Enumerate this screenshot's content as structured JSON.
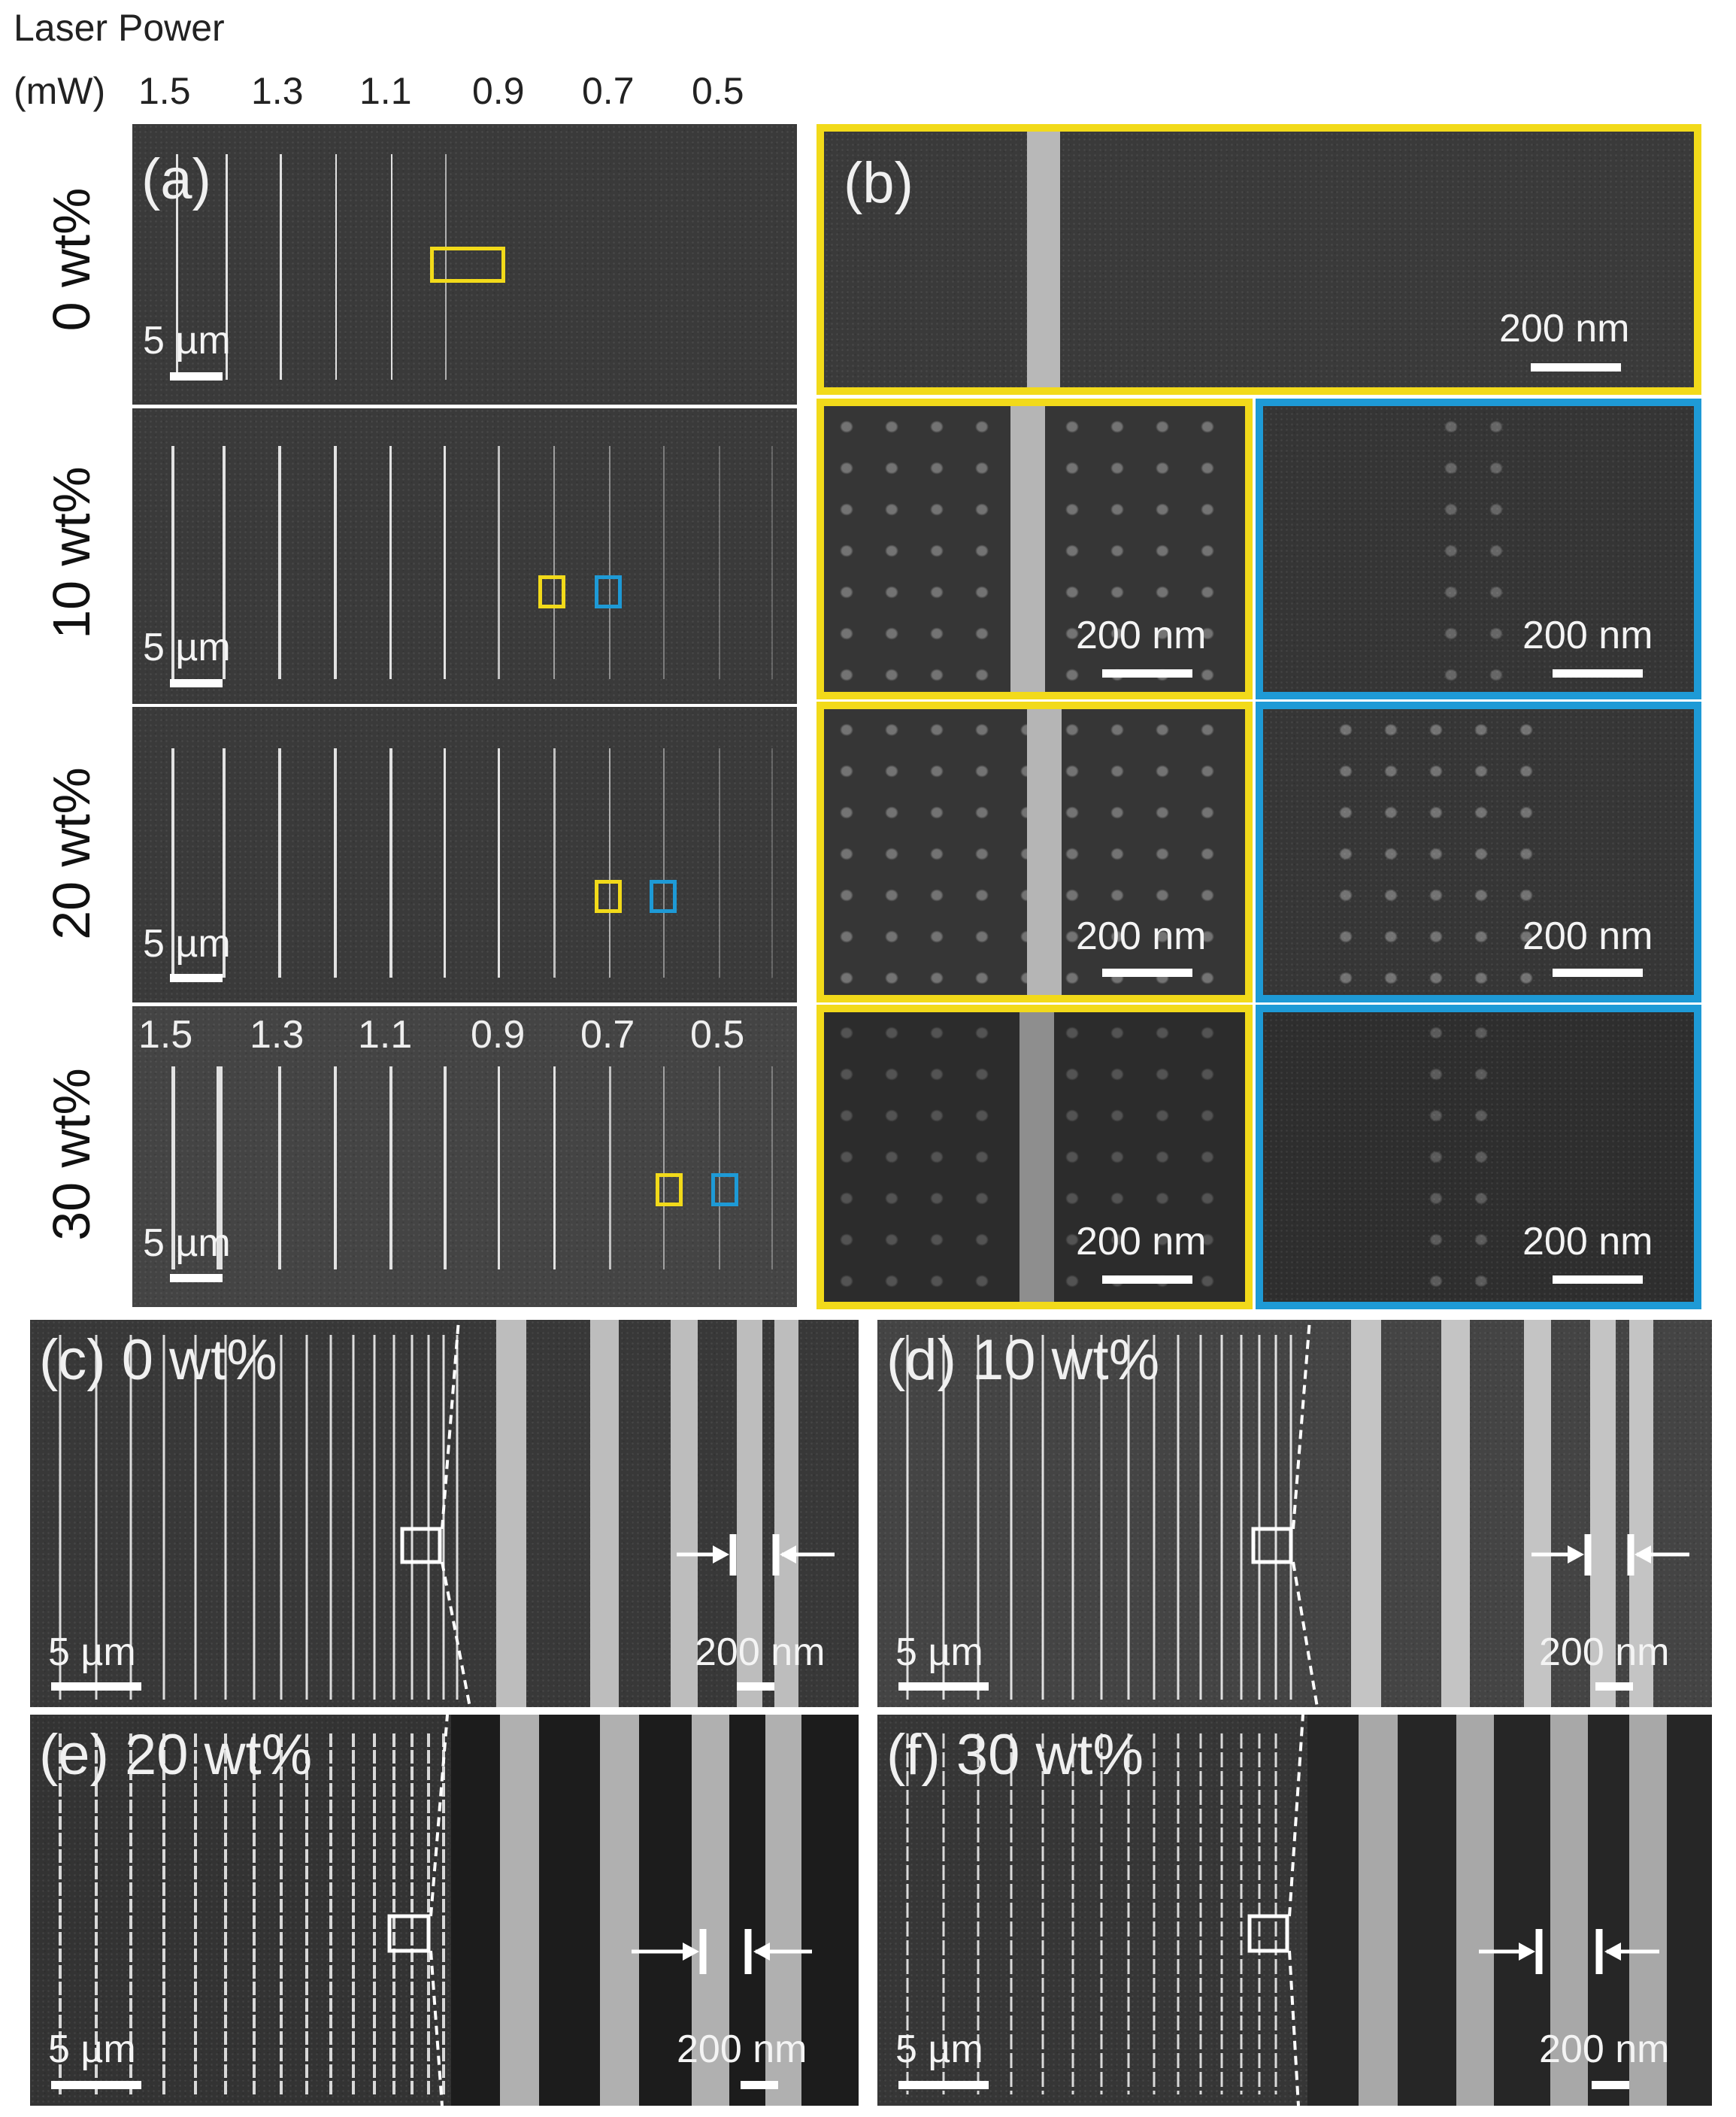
{
  "header": {
    "title": "Laser Power",
    "unit": "(mW)",
    "powers": [
      "1.5",
      "1.3",
      "1.1",
      "0.9",
      "0.7",
      "0.5"
    ]
  },
  "row_labels": [
    "0 wt%",
    "10 wt%",
    "20 wt%",
    "30 wt%"
  ],
  "panels": {
    "a": {
      "label": "(a)",
      "scale_bars": [
        "5 µm",
        "5 µm",
        "5 µm",
        "5 µm"
      ],
      "powers_30": [
        "1.5",
        "1.3",
        "1.1",
        "0.9",
        "0.7",
        "0.5"
      ]
    },
    "b": {
      "label": "(b)",
      "scale_bars": [
        "200 nm",
        "200 nm",
        "200 nm",
        "200 nm",
        "200 nm",
        "200 nm",
        "200 nm"
      ]
    },
    "c": {
      "label": "(c)",
      "title": "0 wt%",
      "scale_left": "5 µm",
      "scale_right": "200 nm"
    },
    "d": {
      "label": "(d)",
      "title": "10 wt%",
      "scale_left": "5 µm",
      "scale_right": "200 nm"
    },
    "e": {
      "label": "(e)",
      "title": "20 wt%",
      "scale_left": "5 µm",
      "scale_right": "200 nm"
    },
    "f": {
      "label": "(f)",
      "title": "30 wt%",
      "scale_left": "5 µm",
      "scale_right": "200 nm"
    }
  },
  "colors": {
    "yellow_box": "#f2da1a",
    "blue_box": "#1e9ad6"
  }
}
